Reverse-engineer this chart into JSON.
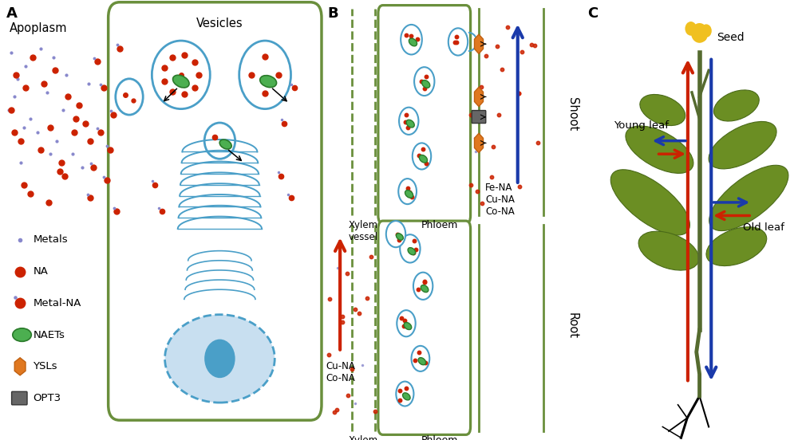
{
  "panel_A_label": "A",
  "panel_B_label": "B",
  "panel_C_label": "C",
  "cell_color": "#6a8f3c",
  "vesicle_color": "#4a9fc8",
  "naet_color": "#4caf50",
  "naet_edge": "#2a7a2a",
  "red_dot_color": "#cc2200",
  "blue_dot_color": "#8888cc",
  "ysl_color": "#e07820",
  "ysl_edge": "#c06010",
  "opt3_color": "#666666",
  "blue_arrow": "#1a3aaa",
  "red_arrow": "#cc2200",
  "nucleus_fill": "#c8dff0",
  "nucleus_edge": "#4a9fc8",
  "leaf_color": "#6b8e23",
  "stem_color": "#556b2f",
  "flower_color": "#f0c020"
}
